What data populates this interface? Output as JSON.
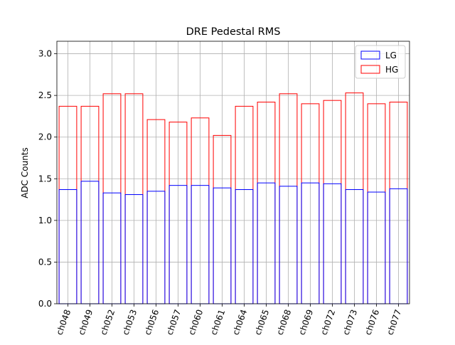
{
  "chart_data": {
    "type": "bar",
    "title": "DRE Pedestal RMS",
    "xlabel": "",
    "ylabel": "ADC Counts",
    "ylim": [
      0,
      3.15
    ],
    "yticks": [
      0.0,
      0.5,
      1.0,
      1.5,
      2.0,
      2.5,
      3.0
    ],
    "ytick_labels": [
      "0.0",
      "0.5",
      "1.0",
      "1.5",
      "2.0",
      "2.5",
      "3.0"
    ],
    "grid": true,
    "legend_position": "top-right",
    "bar_style": "outline",
    "categories": [
      "ch048",
      "ch049",
      "ch052",
      "ch053",
      "ch056",
      "ch057",
      "ch060",
      "ch061",
      "ch064",
      "ch065",
      "ch068",
      "ch069",
      "ch072",
      "ch073",
      "ch076",
      "ch077"
    ],
    "series": [
      {
        "name": "LG",
        "color": "#0000ff",
        "values": [
          1.37,
          1.47,
          1.33,
          1.31,
          1.35,
          1.42,
          1.42,
          1.39,
          1.37,
          1.45,
          1.41,
          1.45,
          1.44,
          1.37,
          1.34,
          1.38
        ]
      },
      {
        "name": "HG",
        "color": "#ff0000",
        "values": [
          2.37,
          2.37,
          2.52,
          2.52,
          2.21,
          2.18,
          2.23,
          2.02,
          2.37,
          2.42,
          2.52,
          2.4,
          2.44,
          2.53,
          2.4,
          2.42
        ]
      }
    ],
    "axis_color": "#000000",
    "grid_color": "#b0b0b0"
  }
}
